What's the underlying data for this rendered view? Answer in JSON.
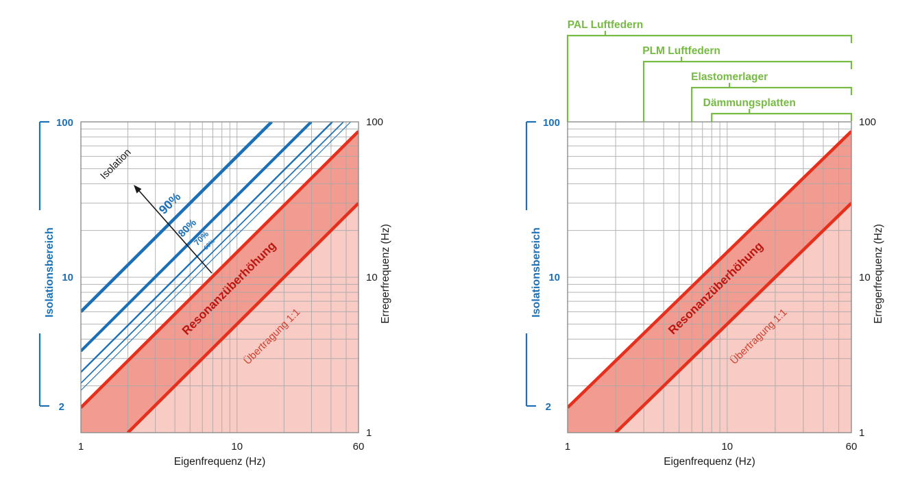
{
  "figure": {
    "description": "Vibration isolation diagrams (log-log), left with isolation percentage lines, right with product frequency ranges"
  },
  "colors": {
    "blue": "#1b6fb5",
    "red_line": "#e5301d",
    "band_fill": "#f29c91",
    "light_fill": "#f8cbc5",
    "resonance_text": "#bc1611",
    "transmission_text": "#d2402f",
    "green": "#76ba43",
    "grid": "#a6a6a6",
    "border": "#8d8d8d",
    "black": "#1a1a1a"
  },
  "chart_data": [
    {
      "id": "isolation-chart-left",
      "type": "line",
      "scale": "log-log",
      "grid": true,
      "x_axis": {
        "label": "Eigenfrequenz (Hz)",
        "range": [
          1,
          60
        ],
        "ticks": [
          1,
          10,
          60
        ]
      },
      "y_axis_right": {
        "label": "Erregerfrequenz (Hz)",
        "range": [
          1,
          100
        ],
        "ticks": [
          100,
          10,
          1
        ]
      },
      "y_axis_left": {
        "label": "Isolationsbereich",
        "ticks": [
          100,
          10,
          2
        ]
      },
      "isolation_lines": [
        {
          "label": "90%",
          "ratio": 6.0
        },
        {
          "label": "80%",
          "ratio": 3.35
        },
        {
          "label": "70%",
          "ratio": 2.45
        },
        {
          "label": "60%",
          "ratio": 2.08
        },
        {
          "label": "",
          "ratio": 1.87
        }
      ],
      "resonance_band": {
        "upper_ratio": 1.45,
        "lower_ratio": 0.5,
        "label": "Resonanzüberhöhung"
      },
      "transmission_zone": {
        "label": "Übertragung 1:1"
      },
      "arrow": {
        "label": "Isolation"
      }
    },
    {
      "id": "isolation-chart-right",
      "type": "line",
      "scale": "log-log",
      "grid": true,
      "x_axis": {
        "label": "Eigenfrequenz (Hz)",
        "range": [
          1,
          60
        ],
        "ticks": [
          1,
          10,
          60
        ]
      },
      "y_axis_right": {
        "label": "Erregerfrequenz (Hz)",
        "range": [
          1,
          100
        ],
        "ticks": [
          100,
          10,
          1
        ]
      },
      "y_axis_left": {
        "label": "Isolationsbereich",
        "ticks": [
          100,
          10,
          2
        ]
      },
      "resonance_band": {
        "upper_ratio": 1.45,
        "lower_ratio": 0.5,
        "label": "Resonanzüberhöhung"
      },
      "transmission_zone": {
        "label": "Übertragung 1:1"
      },
      "brackets": [
        {
          "label": "PAL Luftfedern",
          "from_hz": 1,
          "to_hz": 60
        },
        {
          "label": "PLM Luftfedern",
          "from_hz": 3,
          "to_hz": 60
        },
        {
          "label": "Elastomerlager",
          "from_hz": 6,
          "to_hz": 60
        },
        {
          "label": "Dämmungsplatten",
          "from_hz": 8,
          "to_hz": 60
        }
      ]
    }
  ]
}
